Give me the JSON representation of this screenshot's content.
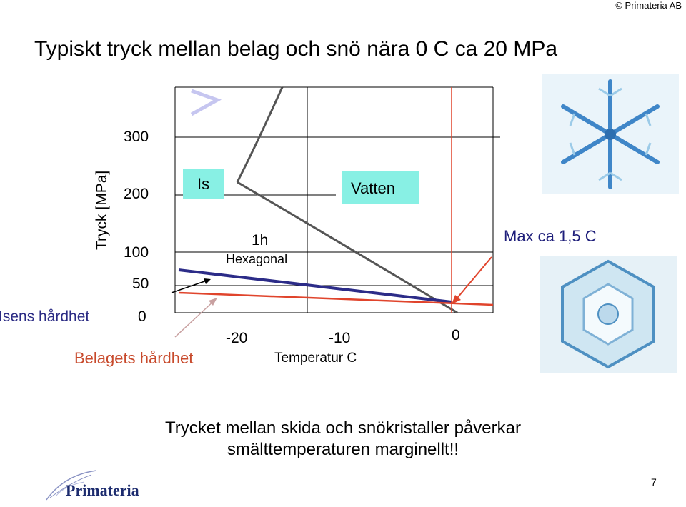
{
  "header": {
    "copyright": "© Primateria AB"
  },
  "slide": {
    "title": "Typiskt tryck mellan belag och snö nära 0 C ca 20 MPa",
    "page_number": "7"
  },
  "chart_data": {
    "type": "line",
    "title": "",
    "ylabel": "Tryck [MPa]",
    "xlabel": "Temperatur C",
    "y_ticks": [
      "300",
      "200",
      "100",
      "50",
      "0"
    ],
    "x_ticks": [
      "-20",
      "-10",
      "0"
    ],
    "regions": {
      "ice": "Is",
      "water": "Vatten",
      "phase_label_1": "1h",
      "phase_label_2": "Hexagonal"
    },
    "series_labels": {
      "ice_hardness": "Isens hårdhet",
      "base_hardness": "Belagets hårdhet"
    },
    "annotation": "Max ca 1,5 C",
    "series": [
      {
        "key": "melting_curve",
        "color": "#555555",
        "points": [
          [
            -27.5,
            280
          ],
          [
            -22.5,
            225
          ],
          [
            -10,
            110
          ],
          [
            0,
            25
          ]
        ]
      },
      {
        "key": "ice_hardness",
        "color": "#2c2c88",
        "points": [
          [
            -30,
            80
          ],
          [
            0,
            20
          ]
        ]
      },
      {
        "key": "base_hardness",
        "color": "#e0442c",
        "points": [
          [
            -30,
            40
          ],
          [
            2,
            18
          ]
        ]
      },
      {
        "key": "upper_ice_boundary",
        "color": "#555555",
        "points": [
          [
            -21,
            300
          ],
          [
            -27,
            240
          ]
        ]
      }
    ],
    "xlim": [
      -30,
      2
    ],
    "ylim": [
      0,
      310
    ],
    "colors": {
      "ice_hardness": "#2c2c88",
      "base_hardness": "#e0442c",
      "water_region": "#88f0e4",
      "ice_region": "#88f0e4",
      "arrow": "#e0442c"
    }
  },
  "footer": {
    "text_line_1": "Trycket mellan skida och snökristaller påverkar",
    "text_line_2": "smälttemperaturen marginellt!!",
    "logo_text": "Primateria"
  }
}
